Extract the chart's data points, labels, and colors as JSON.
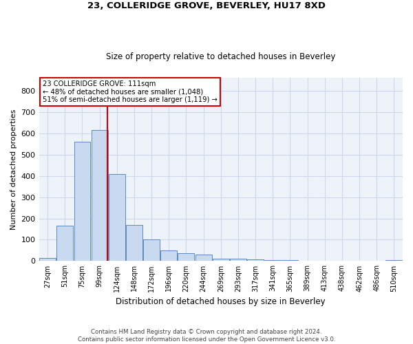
{
  "title1": "23, COLLERIDGE GROVE, BEVERLEY, HU17 8XD",
  "title2": "Size of property relative to detached houses in Beverley",
  "xlabel": "Distribution of detached houses by size in Beverley",
  "ylabel": "Number of detached properties",
  "bar_labels": [
    "27sqm",
    "51sqm",
    "75sqm",
    "99sqm",
    "124sqm",
    "148sqm",
    "172sqm",
    "196sqm",
    "220sqm",
    "244sqm",
    "269sqm",
    "293sqm",
    "317sqm",
    "341sqm",
    "365sqm",
    "389sqm",
    "413sqm",
    "438sqm",
    "462sqm",
    "486sqm",
    "510sqm"
  ],
  "bar_values": [
    15,
    165,
    560,
    615,
    410,
    170,
    100,
    50,
    38,
    30,
    12,
    12,
    8,
    5,
    5,
    3,
    0,
    0,
    0,
    0,
    5
  ],
  "bar_color": "#c8d9f0",
  "bar_edgecolor": "#5a8abf",
  "ylim": [
    0,
    860
  ],
  "yticks": [
    0,
    100,
    200,
    300,
    400,
    500,
    600,
    700,
    800
  ],
  "property_label": "23 COLLERIDGE GROVE: 111sqm",
  "pct_smaller": "48% of detached houses are smaller (1,048)",
  "pct_larger": "51% of semi-detached houses are larger (1,119)",
  "vline_bin_index": 3,
  "annotation_box_color": "#ffffff",
  "annotation_box_edgecolor": "#cc0000",
  "vline_color": "#cc0000",
  "grid_color": "#cdd8ea",
  "background_color": "#eef2f9",
  "footer": "Contains HM Land Registry data © Crown copyright and database right 2024.\nContains public sector information licensed under the Open Government Licence v3.0."
}
